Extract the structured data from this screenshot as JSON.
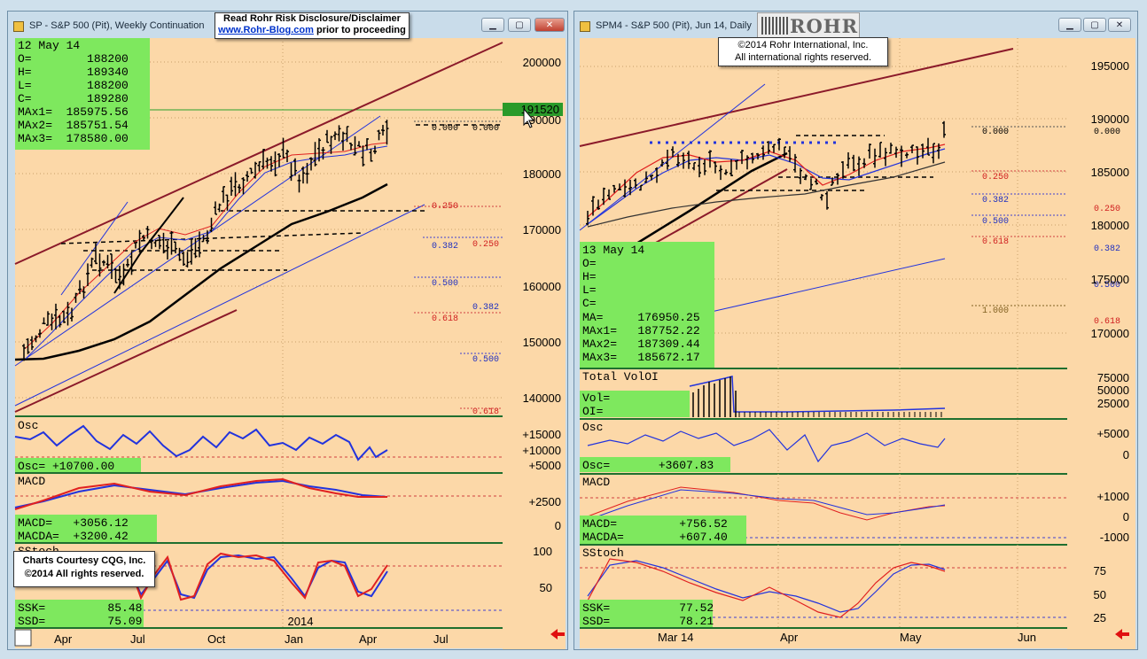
{
  "left_window": {
    "title": "SP - S&P 500 (Pit), Weekly Continuation",
    "disclaimer_line1": "Read Rohr Risk Disclosure/Disclaimer",
    "disclaimer_link": "www.Rohr-Blog.com",
    "disclaimer_line2": " prior to proceeding",
    "courtesy_line1": "Charts Courtesy CQG, Inc.",
    "courtesy_line2": "©2014 All rights reserved.",
    "price_label": "191520",
    "info_box": [
      "12 May 14",
      "O=        188200",
      "H=        189340",
      "L=        188200",
      "C=        189280",
      "MAx1=  185975.56",
      "MAx2=  185751.54",
      "MAx3=  178580.00"
    ],
    "price_ticks": [
      "200000",
      "190000",
      "180000",
      "170000",
      "160000",
      "150000",
      "140000"
    ],
    "fib_labels": [
      "0.000",
      "0.000",
      "0.250",
      "0.250",
      "0.382",
      "0.382",
      "0.500",
      "0.500",
      "0.618",
      "0.618"
    ],
    "osc": {
      "label": "Osc",
      "value_text": "Osc= +10700.00",
      "ticks": [
        "+15000",
        "+10000",
        "+5000"
      ]
    },
    "macd": {
      "label": "MACD",
      "macd_text": "MACD=   +3056.12",
      "macda_text": "MACDA=  +3200.42",
      "ticks": [
        "+2500",
        "0"
      ]
    },
    "sstoch": {
      "label": "SStoch",
      "ssk_text": "SSK=         85.48",
      "ssd_text": "SSD=         75.09",
      "ticks": [
        "100",
        "50"
      ]
    },
    "year_label": "2014",
    "x_ticks": [
      "Apr",
      "Jul",
      "Oct",
      "Jan",
      "Apr",
      "Jul"
    ]
  },
  "right_window": {
    "title": "SPM4 - S&P 500 (Pit), Jun 14, Daily",
    "logo_text": "ROHR",
    "copyright_line1": "©2014  Rohr International, Inc.",
    "copyright_line2": "All international rights reserved.",
    "info_box": [
      "13 May 14",
      "O=",
      "H=",
      "L=",
      "C=",
      "MA=     176950.25",
      "MAx1=   187752.22",
      "MAx2=   187309.44",
      "MAx3=   185672.17"
    ],
    "price_ticks": [
      "195000",
      "190000",
      "185000",
      "180000",
      "175000",
      "170000"
    ],
    "fib_labels": [
      "0.000",
      "0.000",
      "0.250",
      "0.250",
      "0.382",
      "0.382",
      "0.500",
      "0.500",
      "0.618",
      "0.618",
      "1.000"
    ],
    "volume": {
      "label": "Total VolOI",
      "vol_text": "Vol=",
      "oi_text": "OI=",
      "ticks": [
        "75000",
        "50000",
        "25000"
      ]
    },
    "osc": {
      "label": "Osc",
      "value_text": "Osc=       +3607.83",
      "ticks": [
        "+5000",
        "0"
      ]
    },
    "macd": {
      "label": "MACD",
      "macd_text": "MACD=         +756.52",
      "macda_text": "MACDA=        +607.40",
      "ticks": [
        "+1000",
        "0",
        "-1000"
      ]
    },
    "sstoch": {
      "label": "SStoch",
      "ssk_text": "SSK=          77.52",
      "ssd_text": "SSD=          78.21",
      "ticks": [
        "75",
        "50",
        "25"
      ]
    },
    "x_ticks": [
      "Mar 14",
      "Apr",
      "May",
      "Jun"
    ]
  },
  "colors": {
    "chart_bg": "#fcd8a8",
    "info_box": "#7ee85e",
    "price_line_bg": "#2a9a2a",
    "trend_red": "#8b1a2a",
    "ma_blue": "#2233dd"
  },
  "chart_data": [
    {
      "type": "bar",
      "title": "SP - S&P 500 (Pit), Weekly Continuation",
      "x_ticks": [
        "Apr",
        "Jul",
        "Oct",
        "Jan",
        "Apr",
        "Jul"
      ],
      "ylim": [
        135000,
        204000
      ],
      "last_bar": {
        "date": "12 May 14",
        "open": 188200,
        "high": 189340,
        "low": 188200,
        "close": 189280
      },
      "moving_averages": {
        "MAx1": 185975.56,
        "MAx2": 185751.54,
        "MAx3": 178580.0
      },
      "indicators": {
        "Osc": 10700.0,
        "MACD": 3056.12,
        "MACDA": 3200.42,
        "SSK": 85.48,
        "SSD": 75.09
      }
    },
    {
      "type": "bar",
      "title": "SPM4 - S&P 500 (Pit), Jun 14, Daily",
      "x_ticks": [
        "Mar 14",
        "Apr",
        "May",
        "Jun"
      ],
      "ylim": [
        166000,
        198000
      ],
      "last_bar": {
        "date": "13 May 14"
      },
      "moving_averages": {
        "MA": 176950.25,
        "MAx1": 187752.22,
        "MAx2": 187309.44,
        "MAx3": 185672.17
      },
      "indicators": {
        "Osc": 3607.83,
        "MACD": 756.52,
        "MACDA": 607.4,
        "SSK": 77.52,
        "SSD": 78.21
      }
    }
  ]
}
